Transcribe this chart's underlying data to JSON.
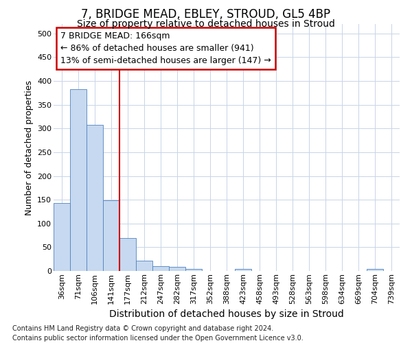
{
  "title1": "7, BRIDGE MEAD, EBLEY, STROUD, GL5 4BP",
  "title2": "Size of property relative to detached houses in Stroud",
  "xlabel": "Distribution of detached houses by size in Stroud",
  "ylabel": "Number of detached properties",
  "footnote": "Contains HM Land Registry data © Crown copyright and database right 2024.\nContains public sector information licensed under the Open Government Licence v3.0.",
  "bin_labels": [
    "36sqm",
    "71sqm",
    "106sqm",
    "141sqm",
    "177sqm",
    "212sqm",
    "247sqm",
    "282sqm",
    "317sqm",
    "352sqm",
    "388sqm",
    "423sqm",
    "458sqm",
    "493sqm",
    "528sqm",
    "563sqm",
    "598sqm",
    "634sqm",
    "669sqm",
    "704sqm",
    "739sqm"
  ],
  "bar_values": [
    143,
    383,
    307,
    149,
    70,
    22,
    10,
    8,
    5,
    0,
    0,
    4,
    0,
    0,
    0,
    0,
    0,
    0,
    0,
    4,
    0
  ],
  "bar_color": "#c6d9f0",
  "bar_edge_color": "#4f81bd",
  "vline_color": "#cc0000",
  "vline_x_index": 4,
  "annotation_text": "7 BRIDGE MEAD: 166sqm\n← 86% of detached houses are smaller (941)\n13% of semi-detached houses are larger (147) →",
  "annotation_box_color": "#ffffff",
  "annotation_border_color": "#cc0000",
  "ylim": [
    0,
    520
  ],
  "yticks": [
    0,
    50,
    100,
    150,
    200,
    250,
    300,
    350,
    400,
    450,
    500
  ],
  "background_color": "#ffffff",
  "grid_color": "#c8d4e8",
  "title1_fontsize": 12,
  "title2_fontsize": 10,
  "xlabel_fontsize": 10,
  "ylabel_fontsize": 9,
  "tick_fontsize": 8,
  "footnote_fontsize": 7
}
